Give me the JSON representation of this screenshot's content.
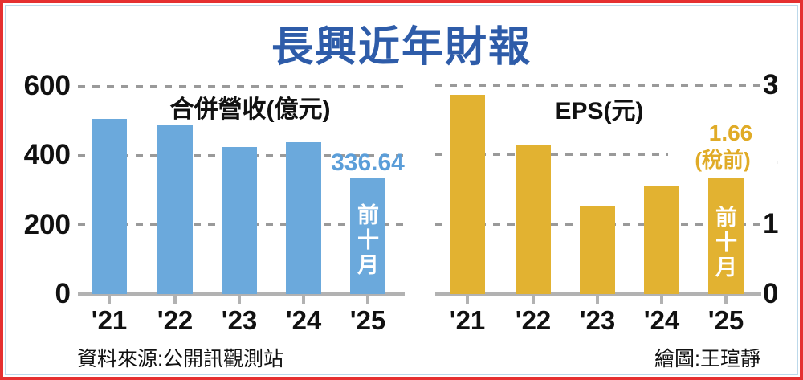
{
  "title": {
    "text": "長興近年財報"
  },
  "theme": {
    "title_color": "#2e5ca9",
    "bar_blue": "#6ba9dc",
    "bar_gold": "#e2b231",
    "value_blue": "#5b9ed9",
    "value_gold": "#e0ab27",
    "ink": "#111111",
    "grid": "#9a9a9a",
    "axis": "#b2b2b2",
    "border_red": "#e53131",
    "border_blue": "#bdd9eb"
  },
  "chart_data": [
    {
      "type": "bar",
      "title": "合併營收(億元)",
      "categories": [
        "'21",
        "'22",
        "'23",
        "'24",
        "'25"
      ],
      "values": [
        506,
        489,
        424,
        438,
        336.64
      ],
      "ylim": [
        0,
        600
      ],
      "yticks": [
        0,
        200,
        400,
        600
      ],
      "axis_side": "left",
      "grid": "horizontal-dashed",
      "legend": "none",
      "bar_color": "#6ba9dc",
      "annotations": {
        "value_label": {
          "text": "336.64",
          "color": "#5b9ed9",
          "applies_to": "'25"
        },
        "bar_note": {
          "text": "前十月",
          "color": "#ffffff",
          "applies_to": "'25"
        }
      }
    },
    {
      "type": "bar",
      "title": "EPS(元)",
      "categories": [
        "'21",
        "'22",
        "'23",
        "'24",
        "'25"
      ],
      "values": [
        2.86,
        2.15,
        1.27,
        1.56,
        1.66
      ],
      "ylim": [
        0,
        3
      ],
      "yticks": [
        0,
        1,
        2,
        3
      ],
      "axis_side": "right",
      "grid": "horizontal-dashed",
      "legend": "none",
      "bar_color": "#e2b231",
      "annotations": {
        "value_label": {
          "text": "1.66",
          "color": "#e0ab27",
          "applies_to": "'25"
        },
        "value_sublabel": {
          "text": "(稅前)",
          "color": "#e0ab27",
          "applies_to": "'25"
        },
        "bar_note": {
          "text": "前十月",
          "color": "#ffffff",
          "applies_to": "'25"
        }
      }
    }
  ],
  "footer": {
    "source_note": "資料來源:公開訊觀測站",
    "credit_note": "繪圖:王瑄靜"
  }
}
